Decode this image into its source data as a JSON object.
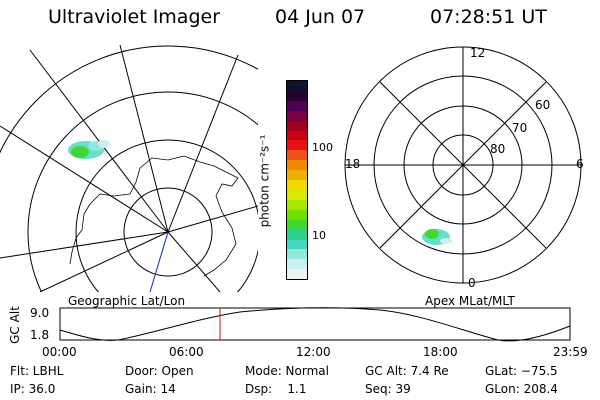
{
  "header": {
    "instrument": "Ultraviolet Imager",
    "date": "04 Jun 07",
    "time": "07:28:51 UT"
  },
  "colorbar": {
    "unit_label": "photon cm⁻²s⁻¹",
    "ticks": [
      "100",
      "10"
    ],
    "colors": [
      "#101030",
      "#2a0030",
      "#500050",
      "#7a0040",
      "#a00020",
      "#c80010",
      "#e81010",
      "#f05020",
      "#f08a00",
      "#f0b000",
      "#f0d800",
      "#d8e800",
      "#a8e800",
      "#70e000",
      "#40d830",
      "#30d090",
      "#40d8c0",
      "#90e8e0",
      "#c8f0f0",
      "#e8f4f4"
    ]
  },
  "left_map": {
    "label": "Geographic Lat/Lon"
  },
  "right_map": {
    "label": "Apex MLat/MLT",
    "mlt_labels": [
      "12",
      "18",
      "6",
      "0"
    ],
    "mlat_labels": [
      "60",
      "70",
      "80"
    ]
  },
  "timeline": {
    "ylabel": "GC Alt",
    "yticks": [
      "9.0",
      "1.8"
    ],
    "xticks": [
      "00:00",
      "06:00",
      "12:00",
      "18:00",
      "23:59"
    ],
    "marker_color": "#d01010"
  },
  "info": {
    "row1": [
      "Flt: LBHL",
      "Door: Open",
      "Mode: Normal",
      "GC Alt: 7.4 Re",
      "GLat: −75.5"
    ],
    "row2": [
      "IP: 36.0",
      "Gain: 14",
      "Dsp:    1.1",
      "Seq: 39",
      "GLon: 208.4"
    ]
  }
}
